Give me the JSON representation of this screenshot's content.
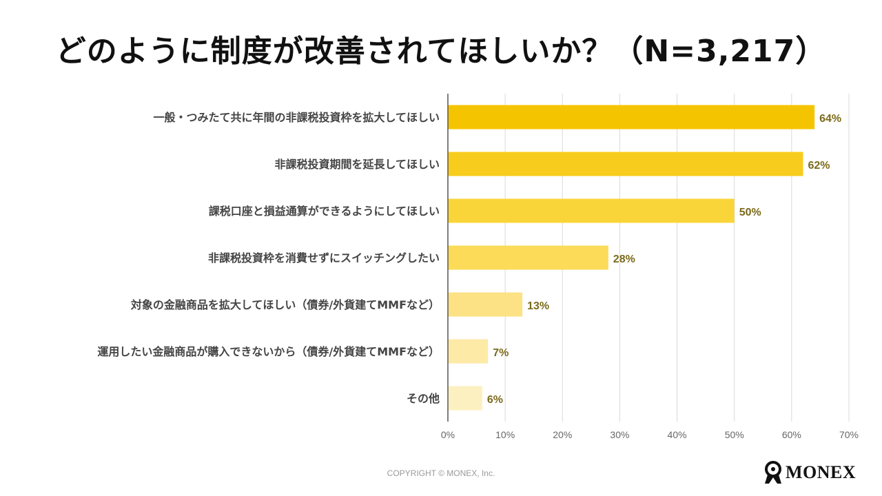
{
  "title": "どのように制度が改善されてほしいか？（N=3,217）",
  "chart_data": {
    "type": "bar",
    "orientation": "horizontal",
    "categories": [
      "一般・つみたて共に年間の非課税投資枠を拡大してほしい",
      "非課税投資期間を延長してほしい",
      "課税口座と損益通算ができるようにしてほしい",
      "非課税投資枠を消費せずにスイッチングしたい",
      "対象の金融商品を拡大してほしい（債券/外貨建てMMFなど）",
      "運用したい金融商品が購入できないから（債券/外貨建てMMFなど）",
      "その他"
    ],
    "values": [
      64,
      62,
      50,
      28,
      13,
      7,
      6
    ],
    "value_labels": [
      "64%",
      "62%",
      "50%",
      "28%",
      "13%",
      "7%",
      "6%"
    ],
    "xticks": [
      "0%",
      "10%",
      "20%",
      "30%",
      "40%",
      "50%",
      "60%",
      "70%"
    ],
    "xlim": [
      0,
      70
    ],
    "grid": true,
    "colors": [
      "#f5c400",
      "#f8cc1c",
      "#fad53a",
      "#fbdb58",
      "#fce284",
      "#fdeaa6",
      "#fdf0c0"
    ]
  },
  "footer": {
    "copyright": "COPYRIGHT © MONEX, Inc.",
    "brand": "MONEX"
  }
}
